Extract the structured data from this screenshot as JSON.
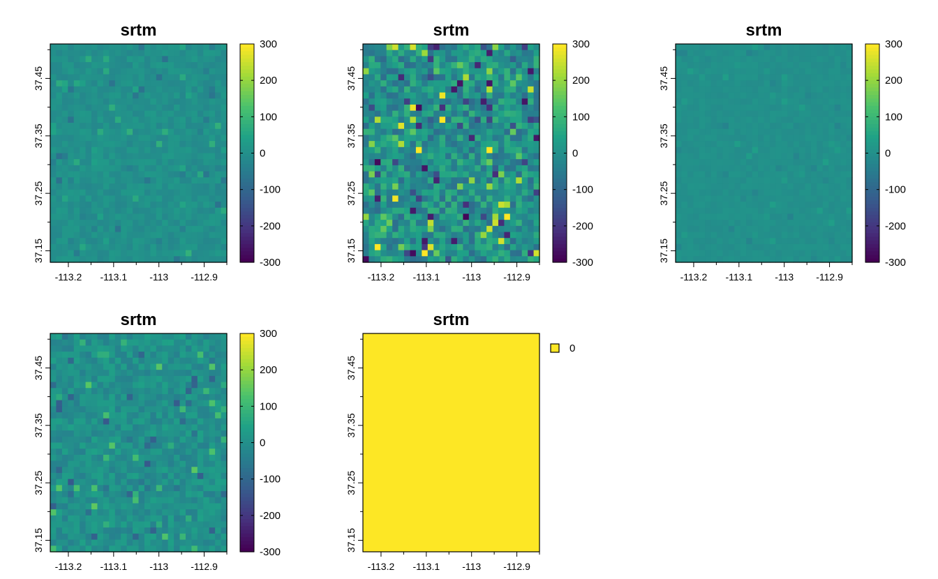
{
  "chart_data": [
    {
      "type": "heatmap",
      "title": "srtm",
      "x_ticks": [
        "-113.2",
        "-113.1",
        "-113",
        "-112.9"
      ],
      "x_tick_values": [
        -113.2,
        -113.1,
        -113.0,
        -112.9
      ],
      "y_ticks": [
        "37.15",
        "37.25",
        "37.35",
        "37.45"
      ],
      "y_tick_values": [
        37.15,
        37.25,
        37.35,
        37.45
      ],
      "xlim": [
        -113.24,
        -112.85
      ],
      "ylim": [
        37.13,
        37.51
      ],
      "colorbar": {
        "labels": [
          "300",
          "200",
          "100",
          "0",
          "-100",
          "-200",
          "-300"
        ],
        "range": [
          -300,
          300
        ]
      },
      "intensity": 0.22,
      "seed": 11,
      "colormap": [
        "#440154",
        "#46327e",
        "#365c8d",
        "#277f8e",
        "#1fa187",
        "#4ac16d",
        "#a0da39",
        "#fde725"
      ]
    },
    {
      "type": "heatmap",
      "title": "srtm",
      "x_ticks": [
        "-113.2",
        "-113.1",
        "-113",
        "-112.9"
      ],
      "x_tick_values": [
        -113.2,
        -113.1,
        -113.0,
        -112.9
      ],
      "y_ticks": [
        "37.15",
        "37.25",
        "37.35",
        "37.45"
      ],
      "y_tick_values": [
        37.15,
        37.25,
        37.35,
        37.45
      ],
      "xlim": [
        -113.24,
        -112.85
      ],
      "ylim": [
        37.13,
        37.51
      ],
      "colorbar": {
        "labels": [
          "300",
          "200",
          "100",
          "0",
          "-100",
          "-200",
          "-300"
        ],
        "range": [
          -300,
          300
        ]
      },
      "intensity": 0.85,
      "seed": 29,
      "colormap": [
        "#440154",
        "#46327e",
        "#365c8d",
        "#277f8e",
        "#1fa187",
        "#4ac16d",
        "#a0da39",
        "#fde725"
      ]
    },
    {
      "type": "heatmap",
      "title": "srtm",
      "x_ticks": [
        "-113.2",
        "-113.1",
        "-113",
        "-112.9"
      ],
      "x_tick_values": [
        -113.2,
        -113.1,
        -113.0,
        -112.9
      ],
      "y_ticks": [
        "37.15",
        "37.25",
        "37.35",
        "37.45"
      ],
      "y_tick_values": [
        37.15,
        37.25,
        37.35,
        37.45
      ],
      "xlim": [
        -113.24,
        -112.85
      ],
      "ylim": [
        37.13,
        37.51
      ],
      "colorbar": {
        "labels": [
          "300",
          "200",
          "100",
          "0",
          "-100",
          "-200",
          "-300"
        ],
        "range": [
          -300,
          300
        ]
      },
      "intensity": 0.1,
      "seed": 47,
      "colormap": [
        "#440154",
        "#46327e",
        "#365c8d",
        "#277f8e",
        "#1fa187",
        "#4ac16d",
        "#a0da39",
        "#fde725"
      ]
    },
    {
      "type": "heatmap",
      "title": "srtm",
      "x_ticks": [
        "-113.2",
        "-113.1",
        "-113",
        "-112.9"
      ],
      "x_tick_values": [
        -113.2,
        -113.1,
        -113.0,
        -112.9
      ],
      "y_ticks": [
        "37.15",
        "37.25",
        "37.35",
        "37.45"
      ],
      "y_tick_values": [
        37.15,
        37.25,
        37.35,
        37.45
      ],
      "xlim": [
        -113.24,
        -112.85
      ],
      "ylim": [
        37.13,
        37.51
      ],
      "colorbar": {
        "labels": [
          "300",
          "200",
          "100",
          "0",
          "-100",
          "-200",
          "-300"
        ],
        "range": [
          -300,
          300
        ]
      },
      "intensity": 0.4,
      "seed": 73,
      "colormap": [
        "#440154",
        "#46327e",
        "#365c8d",
        "#277f8e",
        "#1fa187",
        "#4ac16d",
        "#a0da39",
        "#fde725"
      ]
    },
    {
      "type": "heatmap",
      "title": "srtm",
      "x_ticks": [
        "-113.2",
        "-113.1",
        "-113",
        "-112.9"
      ],
      "x_tick_values": [
        -113.2,
        -113.1,
        -113.0,
        -112.9
      ],
      "y_ticks": [
        "37.15",
        "37.25",
        "37.35",
        "37.45"
      ],
      "y_tick_values": [
        37.15,
        37.25,
        37.35,
        37.45
      ],
      "xlim": [
        -113.24,
        -112.85
      ],
      "ylim": [
        37.13,
        37.51
      ],
      "constant_value": 0,
      "legend": [
        {
          "label": "0",
          "color": "#fde725"
        }
      ]
    }
  ]
}
